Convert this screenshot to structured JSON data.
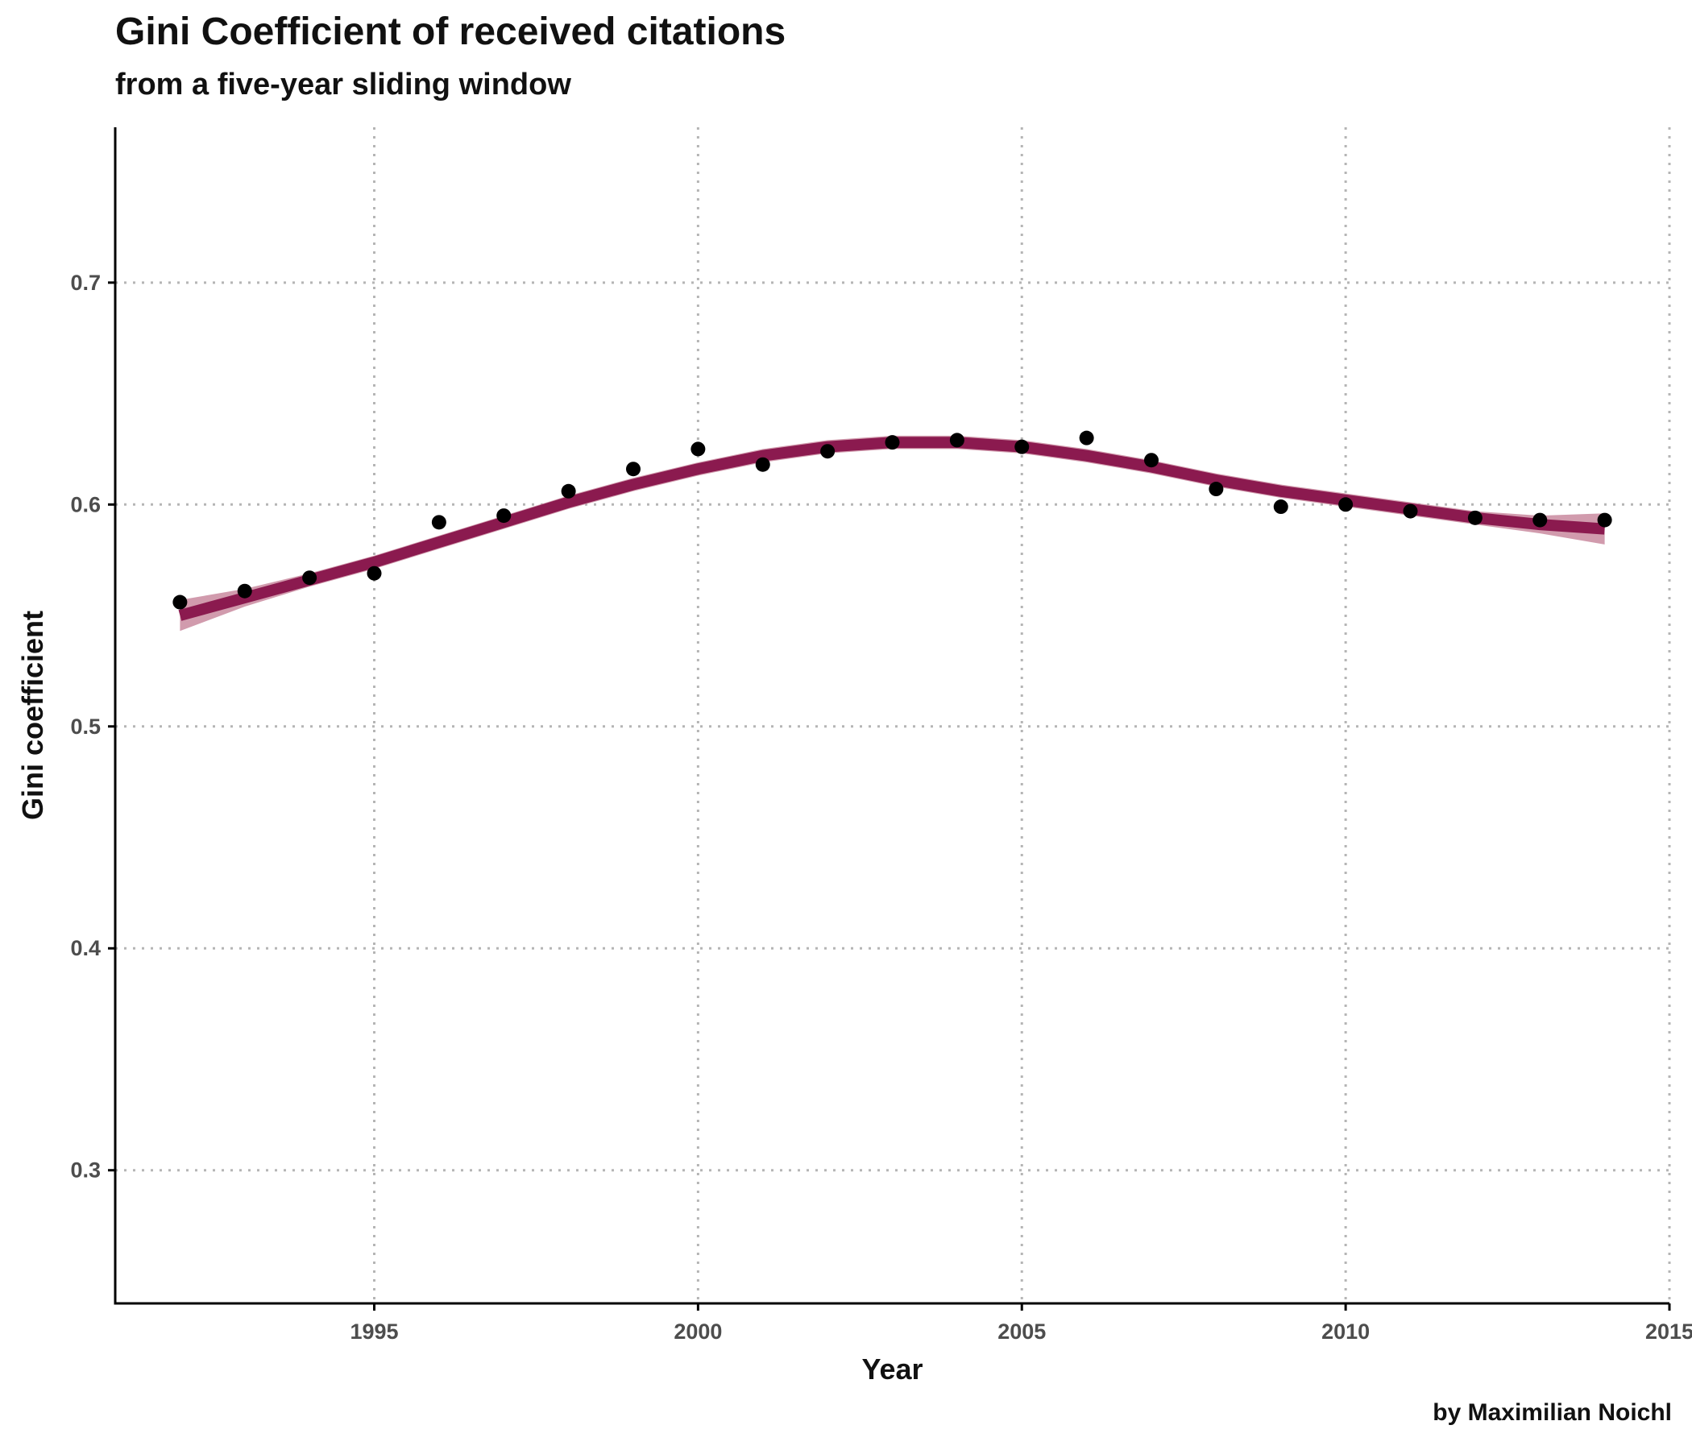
{
  "title": "Gini Coefficient of received citations",
  "subtitle": "from a five-year sliding window",
  "caption": "by Maximilian Noichl",
  "colors": {
    "trend_line": "#8b1a4f",
    "confidence_band": "#c9899f",
    "points": "#000000",
    "grid": "#b5b5b5",
    "axis": "#000000"
  },
  "chart_data": {
    "type": "scatter",
    "xlabel": "Year",
    "ylabel": "Gini coefficient",
    "xlim": [
      1991,
      2015
    ],
    "ylim": [
      0.24,
      0.77
    ],
    "x_ticks": [
      1995,
      2000,
      2005,
      2010,
      2015
    ],
    "y_ticks": [
      0.3,
      0.4,
      0.5,
      0.6,
      0.7
    ],
    "x_tick_labels": [
      "1995",
      "2000",
      "2005",
      "2010",
      "2015"
    ],
    "y_tick_labels": [
      "0.3",
      "0.4",
      "0.5",
      "0.6",
      "0.7"
    ],
    "grid": "dotted major gridlines on both axes",
    "points": {
      "x": [
        1992,
        1993,
        1994,
        1995,
        1996,
        1997,
        1998,
        1999,
        2000,
        2001,
        2002,
        2003,
        2004,
        2005,
        2006,
        2007,
        2008,
        2009,
        2010,
        2011,
        2012,
        2013,
        2014
      ],
      "y": [
        0.556,
        0.561,
        0.567,
        0.569,
        0.592,
        0.595,
        0.606,
        0.616,
        0.625,
        0.618,
        0.624,
        0.628,
        0.629,
        0.626,
        0.63,
        0.62,
        0.607,
        0.599,
        0.6,
        0.597,
        0.594,
        0.593,
        0.593
      ]
    },
    "smooth": {
      "x": [
        1992,
        1993,
        1994,
        1995,
        1996,
        1997,
        1998,
        1999,
        2000,
        2001,
        2002,
        2003,
        2004,
        2005,
        2006,
        2007,
        2008,
        2009,
        2010,
        2011,
        2012,
        2013,
        2014
      ],
      "y": [
        0.55,
        0.558,
        0.566,
        0.574,
        0.583,
        0.592,
        0.601,
        0.609,
        0.616,
        0.622,
        0.626,
        0.628,
        0.628,
        0.626,
        0.622,
        0.617,
        0.611,
        0.606,
        0.602,
        0.598,
        0.594,
        0.591,
        0.589
      ],
      "lower": [
        0.543,
        0.554,
        0.563,
        0.571,
        0.58,
        0.589,
        0.598,
        0.606,
        0.613,
        0.619,
        0.623,
        0.625,
        0.625,
        0.623,
        0.619,
        0.614,
        0.608,
        0.603,
        0.599,
        0.595,
        0.591,
        0.587,
        0.582
      ],
      "upper": [
        0.557,
        0.562,
        0.569,
        0.577,
        0.586,
        0.595,
        0.604,
        0.612,
        0.619,
        0.625,
        0.629,
        0.631,
        0.631,
        0.629,
        0.625,
        0.62,
        0.614,
        0.609,
        0.605,
        0.601,
        0.597,
        0.595,
        0.596
      ]
    }
  }
}
